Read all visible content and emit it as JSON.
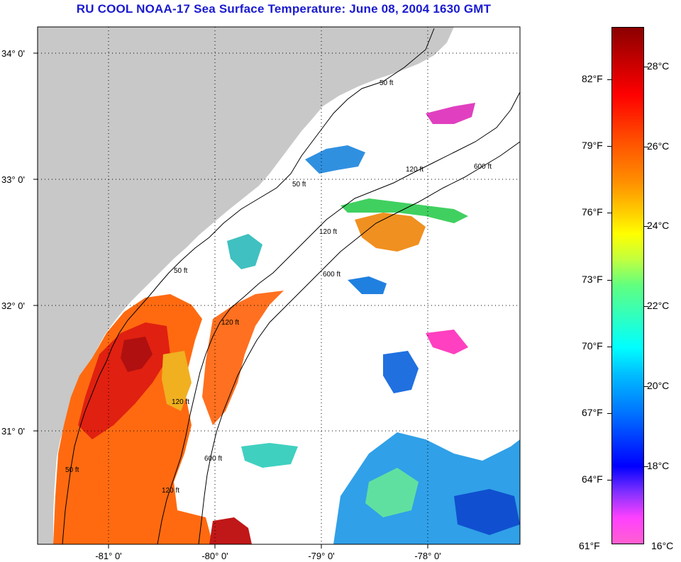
{
  "title": "RU COOL  NOAA-17  Sea Surface Temperature:  June 08, 2004 1630 GMT",
  "map": {
    "lat_labels": [
      "34° 0'",
      "33° 0'",
      "32° 0'",
      "31° 0'"
    ],
    "lon_labels": [
      "-81° 0'",
      "-80° 0'",
      "-79° 0'",
      "-78° 0'"
    ],
    "contour_labels": [
      "50 ft",
      "50 ft",
      "50 ft",
      "50 ft",
      "120 ft",
      "120 ft",
      "120 ft",
      "120 ft",
      "120 ft",
      "600 ft",
      "600 ft",
      "600 ft"
    ],
    "colors": {
      "land": "#c8c8c8",
      "ocean_clouds": "#ffffff",
      "grid": "#000000"
    }
  },
  "colorbar": {
    "f_labels": [
      "82°F",
      "79°F",
      "76°F",
      "73°F",
      "70°F",
      "67°F",
      "64°F",
      "61°F"
    ],
    "c_labels": [
      "28°C",
      "26°C",
      "24°C",
      "22°C",
      "20°C",
      "18°C",
      "16°C"
    ],
    "min_c": 16,
    "max_c": 29
  }
}
